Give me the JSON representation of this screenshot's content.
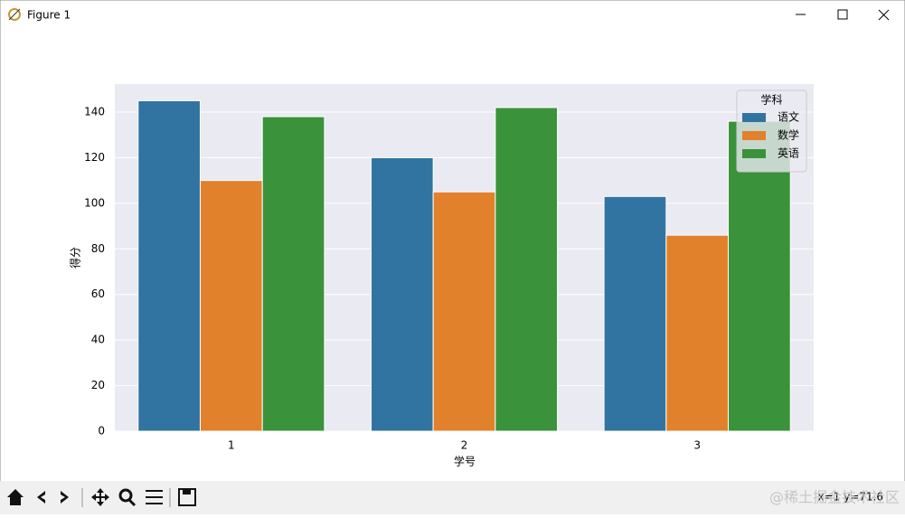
{
  "window": {
    "title": "Figure 1"
  },
  "chart_data": {
    "type": "bar",
    "x_label": "学号",
    "y_label": "得分",
    "categories": [
      "1",
      "2",
      "3"
    ],
    "series": [
      {
        "name": "语文",
        "color": "#3274a1",
        "values": [
          145,
          120,
          103
        ]
      },
      {
        "name": "数学",
        "color": "#e1812c",
        "values": [
          110,
          105,
          86
        ]
      },
      {
        "name": "英语",
        "color": "#3a923a",
        "values": [
          138,
          142,
          136
        ]
      }
    ],
    "legend_title": "学科",
    "legend": "upper right",
    "ylim": [
      0,
      152.3
    ],
    "yticks": [
      0,
      20,
      40,
      60,
      80,
      100,
      120,
      140
    ],
    "grid": true
  },
  "status": "x=1 y=71.6",
  "watermark": "@稀土掘金技术社区"
}
